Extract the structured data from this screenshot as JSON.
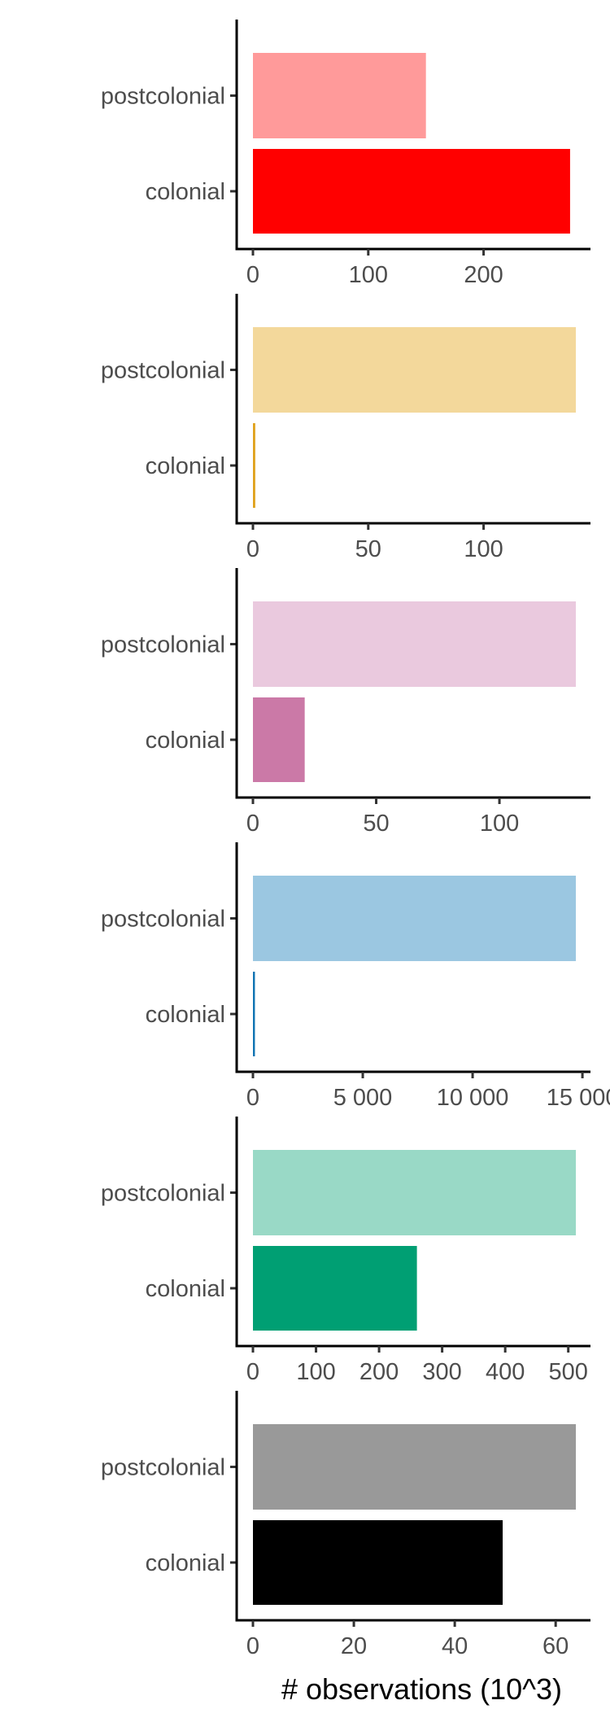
{
  "chart_data": [
    {
      "type": "bar",
      "orientation": "horizontal",
      "categories": [
        "postcolonial",
        "colonial"
      ],
      "values": [
        150,
        275
      ],
      "colors": [
        "#ff9a9a",
        "#ff0000"
      ],
      "xlim": [
        0,
        280
      ],
      "xticks": [
        0,
        100,
        200
      ],
      "xtick_labels": [
        "0",
        "100",
        "200"
      ],
      "grid": false
    },
    {
      "type": "bar",
      "orientation": "horizontal",
      "categories": [
        "postcolonial",
        "colonial"
      ],
      "values": [
        140,
        1
      ],
      "colors": [
        "#f3d89b",
        "#e0a21c"
      ],
      "xlim": [
        0,
        140
      ],
      "xticks": [
        0,
        50,
        100
      ],
      "xtick_labels": [
        "0",
        "50",
        "100"
      ],
      "grid": false
    },
    {
      "type": "bar",
      "orientation": "horizontal",
      "categories": [
        "postcolonial",
        "colonial"
      ],
      "values": [
        131,
        21
      ],
      "colors": [
        "#eac9de",
        "#cb79a7"
      ],
      "xlim": [
        0,
        131
      ],
      "xticks": [
        0,
        50,
        100
      ],
      "xtick_labels": [
        "0",
        "50",
        "100"
      ],
      "grid": false
    },
    {
      "type": "bar",
      "orientation": "horizontal",
      "categories": [
        "postcolonial",
        "colonial"
      ],
      "values": [
        14700,
        90
      ],
      "colors": [
        "#9bc7e1",
        "#0f73b2"
      ],
      "xlim": [
        0,
        14700
      ],
      "xticks": [
        0,
        5000,
        10000,
        15000
      ],
      "xtick_labels": [
        "0",
        "5 000",
        "10 000",
        "15 000"
      ],
      "grid": false
    },
    {
      "type": "bar",
      "orientation": "horizontal",
      "categories": [
        "postcolonial",
        "colonial"
      ],
      "values": [
        512,
        260
      ],
      "colors": [
        "#99d9c6",
        "#009f73"
      ],
      "xlim": [
        0,
        512
      ],
      "xticks": [
        0,
        100,
        200,
        300,
        400,
        500
      ],
      "xtick_labels": [
        "0",
        "100",
        "200",
        "300",
        "400",
        "500"
      ],
      "grid": false
    },
    {
      "type": "bar",
      "orientation": "horizontal",
      "categories": [
        "postcolonial",
        "colonial"
      ],
      "values": [
        64,
        49.5
      ],
      "colors": [
        "#999999",
        "#000000"
      ],
      "xlim": [
        0,
        64
      ],
      "xticks": [
        0,
        20,
        40,
        60
      ],
      "xtick_labels": [
        "0",
        "20",
        "40",
        "60"
      ],
      "xlabel": "# observations (10^3)",
      "grid": false
    }
  ]
}
